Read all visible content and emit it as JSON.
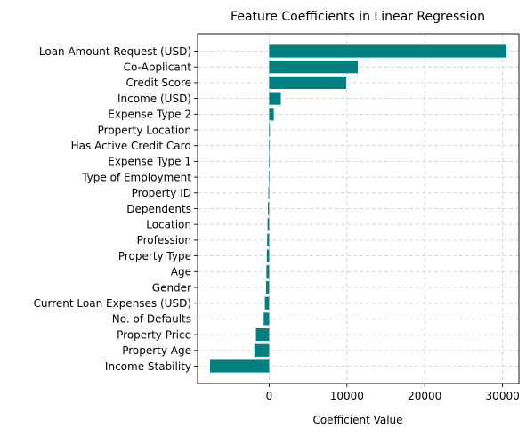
{
  "chart_data": {
    "type": "bar",
    "orientation": "horizontal",
    "title": "Feature Coefficients in Linear Regression",
    "xlabel": "Coefficient Value",
    "ylabel": "",
    "xlim": [
      -9200,
      32100
    ],
    "xticks": [
      0,
      10000,
      20000,
      30000
    ],
    "xtick_labels": [
      "0",
      "10000",
      "20000",
      "30000"
    ],
    "grid": true,
    "bar_color": "#008080",
    "categories": [
      "Loan Amount Request (USD)",
      "Co-Applicant",
      "Credit Score",
      "Income (USD)",
      "Expense Type 2",
      "Property Location",
      "Has Active Credit Card",
      "Expense Type 1",
      "Type of Employment",
      "Property ID",
      "Dependents",
      "Location",
      "Profession",
      "Property Type",
      "Age",
      "Gender",
      "Current Loan Expenses (USD)",
      "No. of Defaults",
      "Property Price",
      "Property Age",
      "Income Stability"
    ],
    "values": [
      30500,
      11400,
      9900,
      1500,
      600,
      100,
      80,
      20,
      10,
      -100,
      -150,
      -200,
      -250,
      -300,
      -350,
      -400,
      -550,
      -700,
      -1700,
      -1900,
      -7600
    ]
  }
}
